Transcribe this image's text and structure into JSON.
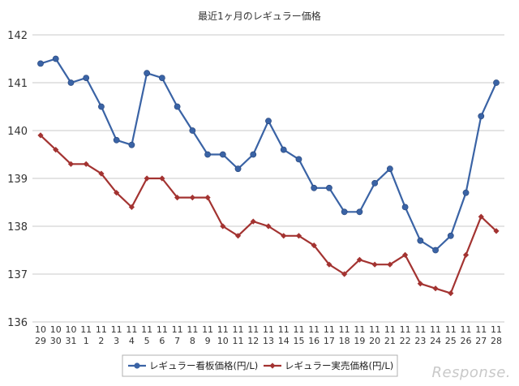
{
  "chart_data": {
    "type": "line",
    "title": "最近1ヶ月のレギュラー価格",
    "xlabel": "",
    "ylabel": "",
    "ylim": [
      136,
      142
    ],
    "yticks": [
      136,
      137,
      138,
      139,
      140,
      141,
      142
    ],
    "grid": true,
    "legend_position": "bottom",
    "categories": [
      [
        "10",
        "29"
      ],
      [
        "10",
        "30"
      ],
      [
        "10",
        "31"
      ],
      [
        "11",
        "1"
      ],
      [
        "11",
        "2"
      ],
      [
        "11",
        "3"
      ],
      [
        "11",
        "4"
      ],
      [
        "11",
        "5"
      ],
      [
        "11",
        "6"
      ],
      [
        "11",
        "7"
      ],
      [
        "11",
        "8"
      ],
      [
        "11",
        "9"
      ],
      [
        "11",
        "10"
      ],
      [
        "11",
        "11"
      ],
      [
        "11",
        "12"
      ],
      [
        "11",
        "13"
      ],
      [
        "11",
        "14"
      ],
      [
        "11",
        "15"
      ],
      [
        "11",
        "16"
      ],
      [
        "11",
        "17"
      ],
      [
        "11",
        "18"
      ],
      [
        "11",
        "19"
      ],
      [
        "11",
        "20"
      ],
      [
        "11",
        "21"
      ],
      [
        "11",
        "22"
      ],
      [
        "11",
        "23"
      ],
      [
        "11",
        "24"
      ],
      [
        "11",
        "25"
      ],
      [
        "11",
        "26"
      ],
      [
        "11",
        "27"
      ],
      [
        "11",
        "28"
      ]
    ],
    "series": [
      {
        "name": "レギュラー看板価格(円/L)",
        "color": "#3a63a5",
        "marker": "circle",
        "values": [
          141.4,
          141.5,
          141.0,
          141.1,
          140.5,
          139.8,
          139.7,
          141.2,
          141.1,
          140.5,
          140.0,
          139.5,
          139.5,
          139.2,
          139.5,
          140.2,
          139.6,
          139.4,
          138.8,
          138.8,
          138.3,
          138.3,
          138.9,
          139.2,
          138.4,
          137.7,
          137.5,
          137.8,
          138.7,
          140.3,
          141.0
        ]
      },
      {
        "name": "レギュラー実売価格(円/L)",
        "color": "#a33331",
        "marker": "diamond",
        "values": [
          139.9,
          139.6,
          139.3,
          139.3,
          139.1,
          138.7,
          138.4,
          139.0,
          139.0,
          138.6,
          138.6,
          138.6,
          138.0,
          137.8,
          138.1,
          138.0,
          137.8,
          137.8,
          137.6,
          137.2,
          137.0,
          137.3,
          137.2,
          137.2,
          137.4,
          136.8,
          136.7,
          136.6,
          137.4,
          138.2,
          137.9
        ]
      }
    ]
  },
  "watermark": "Response."
}
